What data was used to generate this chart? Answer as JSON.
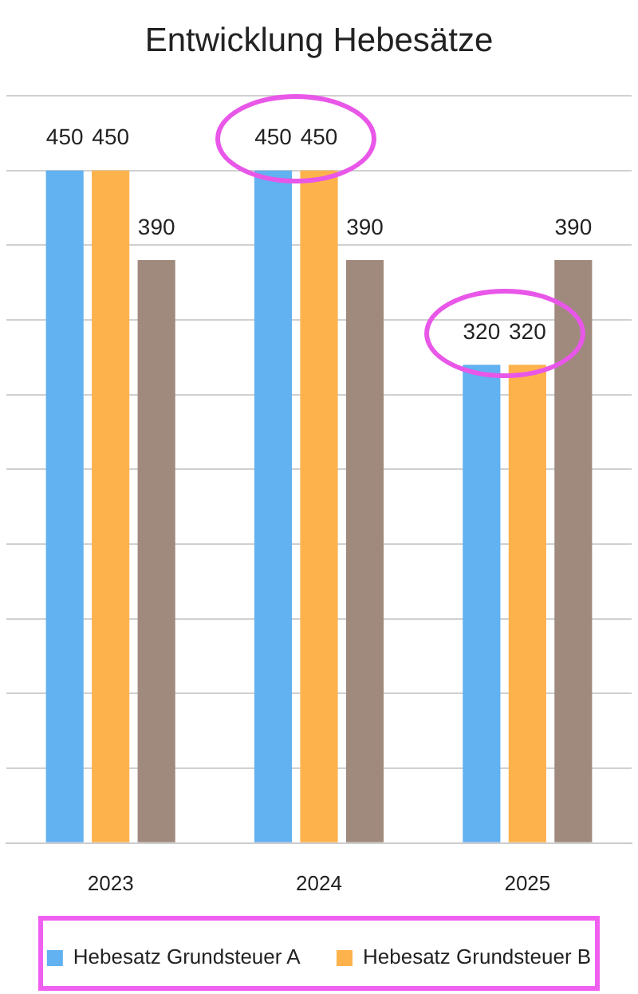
{
  "chart_data": {
    "type": "bar",
    "title": "Entwicklung Hebesätze",
    "categories": [
      "2023",
      "2024",
      "2025"
    ],
    "series": [
      {
        "name": "Hebesatz Grundsteuer A",
        "color": "#62b1f0",
        "values": [
          450,
          450,
          320
        ]
      },
      {
        "name": "Hebesatz Grundsteuer B",
        "color": "#feb24c",
        "values": [
          450,
          450,
          320
        ]
      },
      {
        "color": "#a08a7e",
        "values": [
          390,
          390,
          390
        ]
      }
    ],
    "ylim": [
      0,
      500
    ],
    "yticks": [
      {
        "value": 0,
        "label": null
      },
      {
        "value": 50,
        "label": null
      },
      {
        "value": 100,
        "label": null
      },
      {
        "value": 150,
        "label": null
      },
      {
        "value": 200,
        "label": null
      },
      {
        "value": 250,
        "label": null
      },
      {
        "value": 300,
        "label": null
      },
      {
        "value": 350,
        "label": null
      },
      {
        "value": 400,
        "label": null
      },
      {
        "value": 450,
        "label": null
      },
      {
        "value": 500,
        "label": null
      }
    ],
    "grid": "y",
    "tick_labels": "x",
    "legend": "bottom",
    "data_labels": true
  }
}
